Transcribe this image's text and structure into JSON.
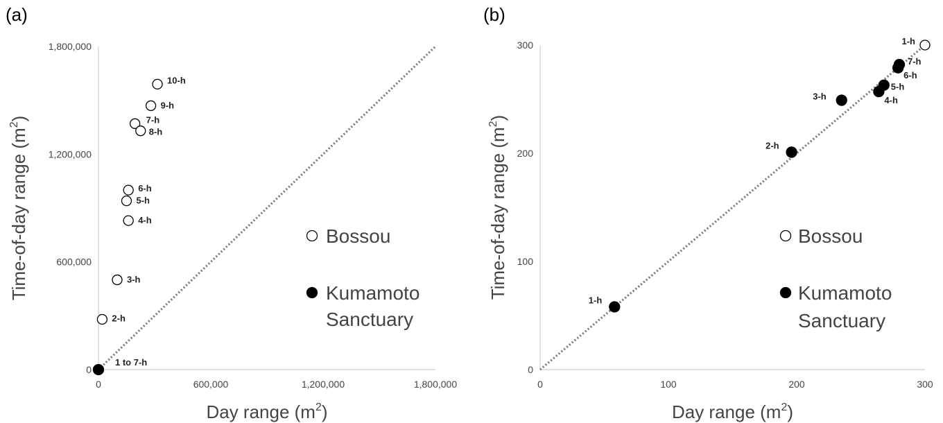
{
  "chart_data": [
    {
      "type": "scatter",
      "panel_label": "(a)",
      "xlabel": "Day range (m",
      "ylabel": "Time-of-day range (m",
      "axis_unit_sup": "2",
      "xlim": [
        0,
        1800000
      ],
      "ylim": [
        0,
        1800000
      ],
      "x_ticks": [
        0,
        600000,
        1200000,
        1800000
      ],
      "y_ticks": [
        0,
        600000,
        1200000,
        1800000
      ],
      "x_tick_labels": [
        "0",
        "600,000",
        "1,200,000",
        "1,800,000"
      ],
      "y_tick_labels": [
        "0",
        "600,000",
        "1,200,000",
        "1,800,000"
      ],
      "reference_line": {
        "style": "dotted",
        "x": [
          0,
          1800000
        ],
        "y": [
          0,
          1800000
        ]
      },
      "legend": {
        "placement": "right",
        "entries": [
          {
            "label": "Bossou",
            "marker": "open"
          },
          {
            "label": "Kumamoto Sanctuary",
            "lines": [
              "Kumamoto",
              "Sanctuary"
            ],
            "marker": "filled"
          }
        ]
      },
      "series": [
        {
          "name": "Bossou",
          "marker": "open",
          "points": [
            {
              "label": "2-h",
              "x": 20000,
              "y": 280000
            },
            {
              "label": "3-h",
              "x": 100000,
              "y": 500000
            },
            {
              "label": "4-h",
              "x": 160000,
              "y": 830000
            },
            {
              "label": "5-h",
              "x": 150000,
              "y": 940000
            },
            {
              "label": "6-h",
              "x": 160000,
              "y": 1000000
            },
            {
              "label": "7-h",
              "x": 195000,
              "y": 1370000
            },
            {
              "label": "8-h",
              "x": 225000,
              "y": 1330000
            },
            {
              "label": "9-h",
              "x": 280000,
              "y": 1470000
            },
            {
              "label": "10-h",
              "x": 315000,
              "y": 1590000
            }
          ]
        },
        {
          "name": "Kumamoto Sanctuary",
          "marker": "filled",
          "points": [
            {
              "label": "1 to 7-h",
              "x": 0,
              "y": 0
            }
          ]
        }
      ]
    },
    {
      "type": "scatter",
      "panel_label": "(b)",
      "xlabel": "Day range (m",
      "ylabel": "Time-of-day range (m",
      "axis_unit_sup": "2",
      "xlim": [
        0,
        300
      ],
      "ylim": [
        0,
        300
      ],
      "x_ticks": [
        0,
        100,
        200,
        300
      ],
      "y_ticks": [
        0,
        100,
        200,
        300
      ],
      "x_tick_labels": [
        "0",
        "100",
        "200",
        "300"
      ],
      "y_tick_labels": [
        "0",
        "100",
        "200",
        "300"
      ],
      "reference_line": {
        "style": "dotted",
        "x": [
          0,
          300
        ],
        "y": [
          0,
          300
        ]
      },
      "legend": {
        "placement": "right",
        "entries": [
          {
            "label": "Bossou",
            "marker": "open"
          },
          {
            "label": "Kumamoto Sanctuary",
            "lines": [
              "Kumamoto",
              "Sanctuary"
            ],
            "marker": "filled"
          }
        ]
      },
      "series": [
        {
          "name": "Bossou",
          "marker": "open",
          "points": [
            {
              "label": "1-h",
              "x": 300,
              "y": 300
            }
          ]
        },
        {
          "name": "Kumamoto Sanctuary",
          "marker": "filled",
          "points": [
            {
              "label": "1-h",
              "x": 58,
              "y": 58
            },
            {
              "label": "2-h",
              "x": 196,
              "y": 201
            },
            {
              "label": "3-h",
              "x": 235,
              "y": 249
            },
            {
              "label": "4-h",
              "x": 264,
              "y": 257
            },
            {
              "label": "5-h",
              "x": 268,
              "y": 263
            },
            {
              "label": "6-h",
              "x": 279,
              "y": 279
            },
            {
              "label": "7-h",
              "x": 280,
              "y": 282
            }
          ]
        }
      ]
    }
  ]
}
